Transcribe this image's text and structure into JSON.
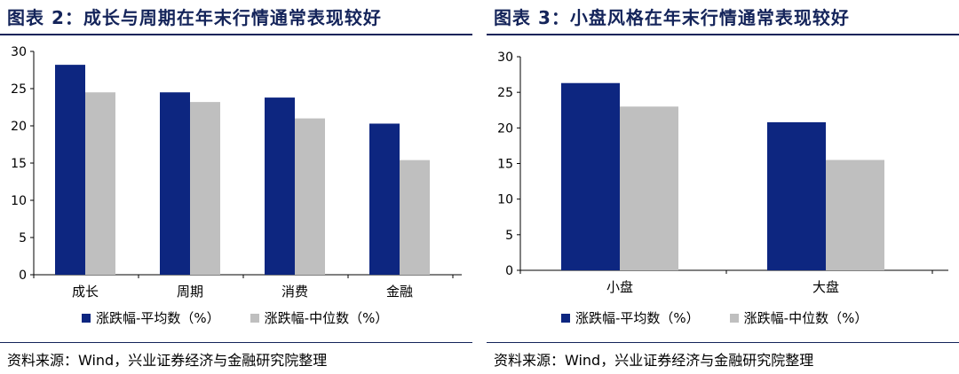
{
  "colors": {
    "avg": "#0d2680",
    "median": "#bfbfbf",
    "header": "#14245a"
  },
  "chart_data": [
    {
      "type": "bar",
      "title": "图表 2：成长与周期在年末行情通常表现较好",
      "categories": [
        "成长",
        "周期",
        "消费",
        "金融"
      ],
      "series": [
        {
          "name": "涨跌幅-平均数（%）",
          "values": [
            28.2,
            24.5,
            23.8,
            20.3
          ]
        },
        {
          "name": "涨跌幅-中位数（%）",
          "values": [
            24.5,
            23.2,
            21.0,
            15.4
          ]
        }
      ],
      "ylim": [
        0,
        30
      ],
      "yticks": [
        "0",
        "5",
        "10",
        "15",
        "20",
        "25",
        "30"
      ],
      "legend": "bottom",
      "grid": false,
      "source": "资料来源：Wind，兴业证券经济与金融研究院整理"
    },
    {
      "type": "bar",
      "title": "图表 3：小盘风格在年末行情通常表现较好",
      "categories": [
        "小盘",
        "大盘"
      ],
      "series": [
        {
          "name": "涨跌幅-平均数（%）",
          "values": [
            26.3,
            20.8
          ]
        },
        {
          "name": "涨跌幅-中位数（%）",
          "values": [
            23.0,
            15.5
          ]
        }
      ],
      "ylim": [
        0,
        30
      ],
      "yticks": [
        "0",
        "5",
        "10",
        "15",
        "20",
        "25",
        "30"
      ],
      "legend": "bottom",
      "grid": false,
      "source": "资料来源：Wind，兴业证券经济与金融研究院整理"
    }
  ]
}
